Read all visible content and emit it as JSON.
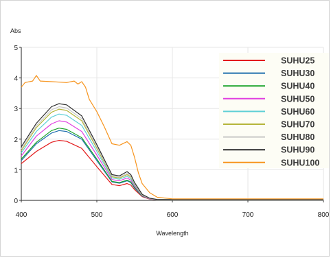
{
  "chart_data": {
    "type": "line",
    "title": "",
    "xlabel": "Wavelength",
    "ylabel": "Abs",
    "xlim": [
      400,
      800
    ],
    "ylim": [
      0,
      5
    ],
    "xticks": [
      400,
      500,
      600,
      700,
      800
    ],
    "yticks": [
      0,
      1,
      2,
      3,
      4,
      5
    ],
    "grid": true,
    "legend_position": "top-right",
    "series": [
      {
        "name": "SUHU25",
        "color": "#e31a1c",
        "x": [
          400,
          420,
          440,
          450,
          460,
          480,
          500,
          520,
          530,
          540,
          545,
          550,
          560,
          570,
          580,
          600,
          700,
          800
        ],
        "y": [
          1.2,
          1.6,
          1.9,
          1.96,
          1.93,
          1.7,
          1.1,
          0.52,
          0.48,
          0.55,
          0.5,
          0.35,
          0.12,
          0.04,
          0.02,
          0.02,
          0.02,
          0.02
        ]
      },
      {
        "name": "SUHU30",
        "color": "#1f6fae",
        "x": [
          400,
          420,
          440,
          450,
          460,
          480,
          500,
          520,
          530,
          540,
          545,
          550,
          560,
          570,
          580,
          600,
          700,
          800
        ],
        "y": [
          1.3,
          1.85,
          2.2,
          2.28,
          2.25,
          2.0,
          1.3,
          0.6,
          0.56,
          0.64,
          0.58,
          0.4,
          0.14,
          0.05,
          0.02,
          0.02,
          0.02,
          0.02
        ]
      },
      {
        "name": "SUHU40",
        "color": "#1aa32a",
        "x": [
          400,
          420,
          440,
          450,
          460,
          480,
          500,
          520,
          530,
          540,
          545,
          550,
          560,
          570,
          580,
          600,
          700,
          800
        ],
        "y": [
          1.35,
          1.9,
          2.28,
          2.36,
          2.32,
          2.05,
          1.35,
          0.62,
          0.58,
          0.66,
          0.6,
          0.42,
          0.15,
          0.05,
          0.02,
          0.02,
          0.02,
          0.02
        ]
      },
      {
        "name": "SUHU50",
        "color": "#e03fe0",
        "x": [
          400,
          420,
          440,
          450,
          460,
          480,
          500,
          520,
          530,
          540,
          545,
          550,
          560,
          570,
          580,
          600,
          700,
          800
        ],
        "y": [
          1.45,
          2.1,
          2.5,
          2.6,
          2.56,
          2.25,
          1.48,
          0.68,
          0.64,
          0.73,
          0.66,
          0.46,
          0.16,
          0.05,
          0.02,
          0.02,
          0.02,
          0.02
        ]
      },
      {
        "name": "SUHU60",
        "color": "#5fd0d6",
        "x": [
          400,
          420,
          440,
          450,
          460,
          480,
          500,
          520,
          530,
          540,
          545,
          550,
          560,
          570,
          580,
          600,
          700,
          800
        ],
        "y": [
          1.55,
          2.25,
          2.72,
          2.82,
          2.78,
          2.45,
          1.6,
          0.73,
          0.69,
          0.79,
          0.71,
          0.5,
          0.17,
          0.06,
          0.02,
          0.02,
          0.02,
          0.02
        ]
      },
      {
        "name": "SUHU70",
        "color": "#b5b53a",
        "x": [
          400,
          420,
          440,
          450,
          460,
          480,
          500,
          520,
          530,
          540,
          545,
          550,
          560,
          570,
          580,
          600,
          700,
          800
        ],
        "y": [
          1.62,
          2.38,
          2.88,
          2.98,
          2.94,
          2.6,
          1.7,
          0.77,
          0.73,
          0.84,
          0.76,
          0.53,
          0.18,
          0.06,
          0.02,
          0.02,
          0.02,
          0.02
        ]
      },
      {
        "name": "SUHU80",
        "color": "#c8c8c8",
        "x": [
          400,
          420,
          440,
          450,
          460,
          480,
          500,
          520,
          530,
          540,
          545,
          550,
          560,
          570,
          580,
          600,
          700,
          800
        ],
        "y": [
          1.68,
          2.44,
          2.96,
          3.06,
          3.02,
          2.67,
          1.75,
          0.8,
          0.76,
          0.88,
          0.79,
          0.55,
          0.19,
          0.06,
          0.02,
          0.02,
          0.02,
          0.02
        ]
      },
      {
        "name": "SUHU90",
        "color": "#2b2b2b",
        "x": [
          400,
          420,
          440,
          450,
          460,
          480,
          500,
          520,
          530,
          540,
          545,
          550,
          560,
          570,
          580,
          600,
          700,
          800
        ],
        "y": [
          1.75,
          2.52,
          3.06,
          3.16,
          3.12,
          2.76,
          1.82,
          0.84,
          0.8,
          0.94,
          0.84,
          0.58,
          0.2,
          0.07,
          0.03,
          0.03,
          0.03,
          0.03
        ]
      },
      {
        "name": "SUHU100",
        "color": "#f7941d",
        "x": [
          400,
          405,
          415,
          420,
          425,
          440,
          460,
          470,
          475,
          480,
          485,
          490,
          500,
          510,
          520,
          530,
          540,
          545,
          550,
          555,
          560,
          570,
          580,
          600,
          700,
          800
        ],
        "y": [
          3.7,
          3.85,
          3.9,
          4.08,
          3.9,
          3.88,
          3.85,
          3.9,
          3.8,
          3.88,
          3.7,
          3.3,
          2.9,
          2.4,
          1.85,
          1.8,
          1.92,
          1.8,
          1.4,
          0.9,
          0.55,
          0.25,
          0.1,
          0.05,
          0.05,
          0.05
        ]
      }
    ]
  }
}
